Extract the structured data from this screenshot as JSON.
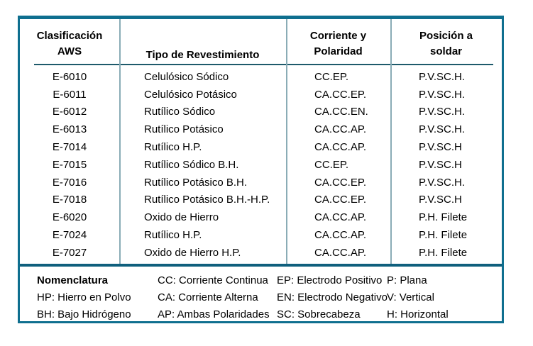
{
  "table": {
    "headers": [
      {
        "line1": "Clasificación",
        "line2": "AWS"
      },
      {
        "line1": "",
        "line2": "Tipo de Revestimiento"
      },
      {
        "line1": "Corriente y",
        "line2": "Polaridad"
      },
      {
        "line1": "Posición a",
        "line2": "soldar"
      }
    ],
    "rows": [
      [
        "E-6010",
        "Celulósico Sódico",
        "CC.EP.",
        "P.V.SC.H."
      ],
      [
        "E-6011",
        "Celulósico Potásico",
        "CA.CC.EP.",
        "P.V.SC.H."
      ],
      [
        "E-6012",
        "Rutílico Sódico",
        "CA.CC.EN.",
        "P.V.SC.H."
      ],
      [
        "E-6013",
        "Rutílico Potásico",
        "CA.CC.AP.",
        "P.V.SC.H."
      ],
      [
        "E-7014",
        "Rutílico H.P.",
        "CA.CC.AP.",
        "P.V.SC.H"
      ],
      [
        "E-7015",
        "Rutílico Sódico B.H.",
        "CC.EP.",
        "P.V.SC.H"
      ],
      [
        "E-7016",
        "Rutílico Potásico B.H.",
        "CA.CC.EP.",
        "P.V.SC.H."
      ],
      [
        "E-7018",
        "Rutílico Potásico B.H.-H.P.",
        "CA.CC.EP.",
        "P.V.SC.H"
      ],
      [
        "E-6020",
        "Oxido de Hierro",
        "CA.CC.AP.",
        "P.H. Filete"
      ],
      [
        "E-7024",
        "Rutílico H.P.",
        "CA.CC.AP.",
        "P.H. Filete"
      ],
      [
        "E-7027",
        "Oxido de Hierro H.P.",
        "CA.CC.AP.",
        "P.H. Filete"
      ]
    ]
  },
  "legend": {
    "rows": [
      [
        "Nomenclatura",
        "CC: Corriente Continua",
        "EP: Electrodo Positivo",
        "P: Plana"
      ],
      [
        "HP: Hierro en Polvo",
        "CA: Corriente Alterna",
        "EN: Electrodo Negativo",
        "V: Vertical"
      ],
      [
        "BH: Bajo Hidrógeno",
        "AP: Ambas Polaridades",
        "SC: Sobrecabeza",
        "H: Horizontal"
      ]
    ]
  },
  "colors": {
    "frame_border": "#0f6f8f",
    "divider": "#8aacb6",
    "header_line": "#1e5a6b",
    "separator": "#0f5f7d",
    "text": "#000000"
  }
}
